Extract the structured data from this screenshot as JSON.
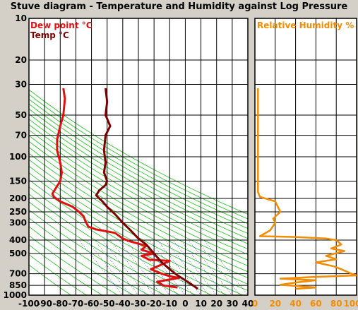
{
  "title": "Stuve diagram - Temperature and Humidity against Log Pressure",
  "colors": {
    "dewpoint": "#e01010",
    "temp": "#7a0000",
    "rh": "#f28c00",
    "dry_adiabats": "#22bb22",
    "mixing_ratio": "#2233ff",
    "grid": "#000000"
  },
  "chart_data": [
    {
      "type": "line",
      "panel": "temperature",
      "y_scale": "log",
      "y_reversed": true,
      "ylim": [
        10,
        1000
      ],
      "xlim": [
        -100,
        40
      ],
      "y_ticks": [
        10,
        20,
        30,
        50,
        70,
        100,
        150,
        200,
        250,
        300,
        400,
        500,
        700,
        850,
        1000
      ],
      "x_ticks": [
        -100,
        -90,
        -80,
        -70,
        -60,
        -50,
        -40,
        -30,
        -20,
        -10,
        0,
        10,
        20,
        30,
        40
      ],
      "grid": true,
      "legend_position": "top-left",
      "series": [
        {
          "name": "Dew point °C",
          "points": [
            [
              -78,
              32
            ],
            [
              -77,
              38
            ],
            [
              -78,
              50
            ],
            [
              -80,
              60
            ],
            [
              -82,
              75
            ],
            [
              -82,
              90
            ],
            [
              -80,
              110
            ],
            [
              -79,
              130
            ],
            [
              -80,
              150
            ],
            [
              -83,
              170
            ],
            [
              -85,
              185
            ],
            [
              -84,
              195
            ],
            [
              -80,
              210
            ],
            [
              -72,
              230
            ],
            [
              -68,
              250
            ],
            [
              -65,
              270
            ],
            [
              -64,
              290
            ],
            [
              -62,
              320
            ],
            [
              -57,
              335
            ],
            [
              -45,
              355
            ],
            [
              -40,
              390
            ],
            [
              -35,
              410
            ],
            [
              -25,
              440
            ],
            [
              -28,
              470
            ],
            [
              -20,
              500
            ],
            [
              -28,
              520
            ],
            [
              -23,
              555
            ],
            [
              -10,
              565
            ],
            [
              -15,
              600
            ],
            [
              -22,
              650
            ],
            [
              -15,
              700
            ],
            [
              -10,
              730
            ],
            [
              -4,
              750
            ],
            [
              -18,
              800
            ],
            [
              -14,
              850
            ],
            [
              -5,
              880
            ]
          ]
        },
        {
          "name": "Temp °C",
          "points": [
            [
              -51,
              32
            ],
            [
              -50,
              40
            ],
            [
              -51,
              50
            ],
            [
              -48,
              60
            ],
            [
              -51,
              70
            ],
            [
              -52,
              90
            ],
            [
              -51,
              110
            ],
            [
              -52,
              130
            ],
            [
              -50,
              150
            ],
            [
              -51,
              160
            ],
            [
              -55,
              175
            ],
            [
              -57,
              190
            ],
            [
              -55,
              200
            ],
            [
              -53,
              210
            ],
            [
              -50,
              230
            ],
            [
              -45,
              260
            ],
            [
              -40,
              300
            ],
            [
              -35,
              340
            ],
            [
              -30,
              390
            ],
            [
              -25,
              430
            ],
            [
              -20,
              500
            ],
            [
              -15,
              580
            ],
            [
              -10,
              650
            ],
            [
              -5,
              720
            ],
            [
              0,
              780
            ],
            [
              5,
              850
            ],
            [
              8,
              900
            ]
          ]
        }
      ]
    },
    {
      "type": "line",
      "panel": "relative_humidity",
      "title": "Relative Humidity %",
      "xlim": [
        0,
        100
      ],
      "x_ticks": [
        "0",
        "20",
        "40",
        "60",
        "80",
        "100%"
      ],
      "series": [
        {
          "name": "Relative Humidity %",
          "points": [
            [
              3,
              32
            ],
            [
              3,
              60
            ],
            [
              3,
              100
            ],
            [
              3,
              150
            ],
            [
              3,
              180
            ],
            [
              5,
              195
            ],
            [
              20,
              210
            ],
            [
              25,
              250
            ],
            [
              18,
              280
            ],
            [
              20,
              300
            ],
            [
              15,
              340
            ],
            [
              5,
              375
            ],
            [
              40,
              380
            ],
            [
              70,
              390
            ],
            [
              80,
              400
            ],
            [
              85,
              430
            ],
            [
              75,
              460
            ],
            [
              88,
              480
            ],
            [
              70,
              520
            ],
            [
              80,
              550
            ],
            [
              60,
              580
            ],
            [
              78,
              620
            ],
            [
              85,
              650
            ],
            [
              95,
              700
            ],
            [
              100,
              720
            ],
            [
              55,
              740
            ],
            [
              25,
              760
            ],
            [
              60,
              780
            ],
            [
              40,
              810
            ],
            [
              25,
              840
            ],
            [
              60,
              880
            ],
            [
              40,
              900
            ]
          ]
        }
      ]
    }
  ]
}
